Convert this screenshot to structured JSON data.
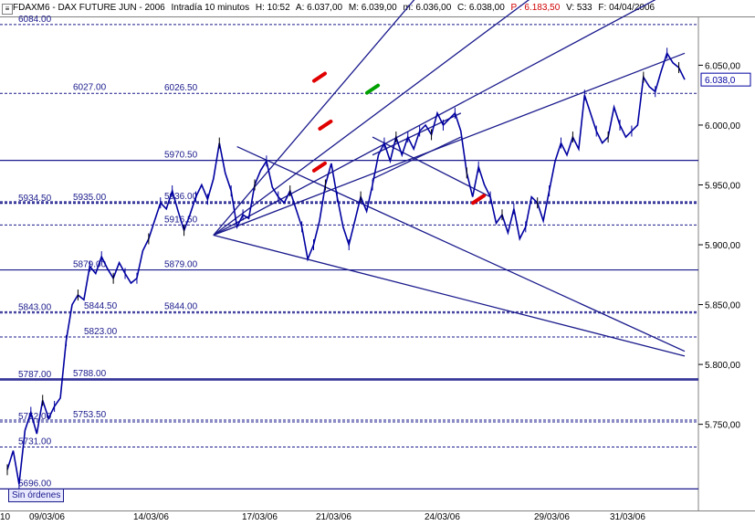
{
  "header": {
    "symbol": "FDAXM6 - DAX FUTURE  JUN - 2006",
    "interval": "Intradía 10 minutos",
    "h": "H: 10:52",
    "a": "A: 6.037,00",
    "m": "M: 6.039,00",
    "mn": "m: 6.036,00",
    "c": "C: 6.038,00",
    "p": "P : 6.183,50",
    "v": "V: 533",
    "f": "F: 04/04/2006"
  },
  "orders_badge": "Sin órdenes",
  "colors": {
    "plot_bg": "#ffffff",
    "line": "#1a1a8c",
    "price": "#0000a0",
    "red_marker": "#e00000",
    "green_marker": "#00a000",
    "black_candle": "#000000"
  },
  "chart_data": {
    "type": "line",
    "title": "",
    "xlabel": "",
    "ylabel": "",
    "ylim": [
      5678,
      6090
    ],
    "y_ticks": [
      "6.050,00",
      "6.000,00",
      "5.950,00",
      "5.900,00",
      "5.850,00",
      "5.800,00",
      "5.750,00"
    ],
    "current_price": "6.038,0",
    "x_labels": [
      "10",
      "09/03/06",
      "14/03/06",
      "17/03/06",
      "21/03/06",
      "24/03/06",
      "29/03/06",
      "31/03/06"
    ],
    "levels": [
      {
        "label": "6084.00",
        "value": 6084,
        "style": "dashed"
      },
      {
        "label": "6026.50",
        "value": 6026.5,
        "style": "dashed"
      },
      {
        "label": "6027.00",
        "value": 6027,
        "style": "dashed"
      },
      {
        "label": "5970.50",
        "value": 5970.5,
        "style": "solid"
      },
      {
        "label": "5934.50",
        "value": 5934.5,
        "style": "dashed"
      },
      {
        "label": "5935.00",
        "value": 5935,
        "style": "dashed"
      },
      {
        "label": "5936.00",
        "value": 5936,
        "style": "dashed"
      },
      {
        "label": "5916.50",
        "value": 5916.5,
        "style": "dashed"
      },
      {
        "label": "5879.00",
        "value": 5879,
        "style": "solid"
      },
      {
        "label": "5879.00",
        "value": 5879,
        "style": "solid"
      },
      {
        "label": "5843.00",
        "value": 5843,
        "style": "dashed"
      },
      {
        "label": "5844.00",
        "value": 5844,
        "style": "dashed"
      },
      {
        "label": "5844.50",
        "value": 5844.5,
        "style": "dashed"
      },
      {
        "label": "5823.00",
        "value": 5823,
        "style": "dashed"
      },
      {
        "label": "5787.00",
        "value": 5787,
        "style": "solid"
      },
      {
        "label": "5788.00",
        "value": 5788,
        "style": "solid"
      },
      {
        "label": "5753.50",
        "value": 5753.5,
        "style": "dashed"
      },
      {
        "label": "5752.00",
        "value": 5752,
        "style": "dashed"
      },
      {
        "label": "5731.00",
        "value": 5731,
        "style": "dashed"
      },
      {
        "label": "5696.00",
        "value": 5696,
        "style": "solid"
      }
    ],
    "series": [
      {
        "values": [
          [
            0,
            5712
          ],
          [
            1,
            5728
          ],
          [
            2,
            5700
          ],
          [
            3,
            5745
          ],
          [
            4,
            5760
          ],
          [
            5,
            5742
          ],
          [
            6,
            5770
          ],
          [
            7,
            5755
          ],
          [
            8,
            5765
          ],
          [
            9,
            5772
          ],
          [
            10,
            5820
          ],
          [
            11,
            5850
          ],
          [
            12,
            5858
          ],
          [
            13,
            5854
          ],
          [
            14,
            5882
          ],
          [
            15,
            5876
          ],
          [
            16,
            5890
          ],
          [
            17,
            5880
          ],
          [
            18,
            5872
          ],
          [
            19,
            5885
          ],
          [
            20,
            5876
          ],
          [
            21,
            5868
          ],
          [
            22,
            5872
          ],
          [
            23,
            5895
          ],
          [
            24,
            5905
          ],
          [
            25,
            5920
          ],
          [
            26,
            5935
          ],
          [
            27,
            5930
          ],
          [
            28,
            5945
          ],
          [
            29,
            5928
          ],
          [
            30,
            5912
          ],
          [
            31,
            5925
          ],
          [
            32,
            5940
          ],
          [
            33,
            5950
          ],
          [
            34,
            5938
          ],
          [
            35,
            5955
          ],
          [
            36,
            5985
          ],
          [
            37,
            5960
          ],
          [
            38,
            5945
          ],
          [
            39,
            5915
          ],
          [
            40,
            5925
          ],
          [
            41,
            5922
          ],
          [
            42,
            5950
          ],
          [
            43,
            5962
          ],
          [
            44,
            5970
          ],
          [
            45,
            5948
          ],
          [
            46,
            5940
          ],
          [
            47,
            5935
          ],
          [
            48,
            5945
          ],
          [
            49,
            5930
          ],
          [
            50,
            5915
          ],
          [
            51,
            5888
          ],
          [
            52,
            5900
          ],
          [
            53,
            5920
          ],
          [
            54,
            5950
          ],
          [
            55,
            5968
          ],
          [
            56,
            5940
          ],
          [
            57,
            5915
          ],
          [
            58,
            5900
          ],
          [
            59,
            5920
          ],
          [
            60,
            5940
          ],
          [
            61,
            5928
          ],
          [
            62,
            5950
          ],
          [
            63,
            5975
          ],
          [
            64,
            5985
          ],
          [
            65,
            5970
          ],
          [
            66,
            5990
          ],
          [
            67,
            5975
          ],
          [
            68,
            5990
          ],
          [
            69,
            5980
          ],
          [
            70,
            5995
          ],
          [
            71,
            6000
          ],
          [
            72,
            5992
          ],
          [
            73,
            6010
          ],
          [
            74,
            6000
          ],
          [
            75,
            6005
          ],
          [
            76,
            6010
          ],
          [
            77,
            5995
          ],
          [
            78,
            5960
          ],
          [
            79,
            5940
          ],
          [
            80,
            5965
          ],
          [
            81,
            5950
          ],
          [
            82,
            5940
          ],
          [
            83,
            5918
          ],
          [
            84,
            5925
          ],
          [
            85,
            5910
          ],
          [
            86,
            5930
          ],
          [
            87,
            5905
          ],
          [
            88,
            5915
          ],
          [
            89,
            5940
          ],
          [
            90,
            5935
          ],
          [
            91,
            5920
          ],
          [
            92,
            5945
          ],
          [
            93,
            5970
          ],
          [
            94,
            5985
          ],
          [
            95,
            5975
          ],
          [
            96,
            5990
          ],
          [
            97,
            5980
          ],
          [
            98,
            6025
          ],
          [
            99,
            6010
          ],
          [
            100,
            5995
          ],
          [
            101,
            5985
          ],
          [
            102,
            5990
          ],
          [
            103,
            6015
          ],
          [
            104,
            6000
          ],
          [
            105,
            5990
          ],
          [
            106,
            5995
          ],
          [
            107,
            6000
          ],
          [
            108,
            6040
          ],
          [
            109,
            6032
          ],
          [
            110,
            6028
          ],
          [
            111,
            6045
          ],
          [
            112,
            6060
          ],
          [
            113,
            6052
          ],
          [
            114,
            6048
          ],
          [
            115,
            6038
          ]
        ]
      }
    ],
    "trendlines": [
      {
        "from": [
          35,
          5908
        ],
        "to": [
          115,
          6060
        ]
      },
      {
        "from": [
          35,
          5908
        ],
        "to": [
          115,
          5807
        ]
      },
      {
        "from": [
          39,
          5982
        ],
        "to": [
          115,
          5811
        ]
      },
      {
        "from": [
          35,
          5908
        ],
        "to": [
          70,
          6110
        ]
      },
      {
        "from": [
          35,
          5908
        ],
        "to": [
          90,
          6110
        ]
      },
      {
        "from": [
          35,
          5908
        ],
        "to": [
          112,
          6110
        ]
      },
      {
        "from": [
          62,
          5975
        ],
        "to": [
          77,
          6010
        ]
      },
      {
        "from": [
          62,
          5955
        ],
        "to": [
          77,
          5990
        ]
      },
      {
        "from": [
          62,
          5990
        ],
        "to": [
          82,
          5940
        ]
      }
    ],
    "markers": [
      {
        "x": 53,
        "y": 6040,
        "color": "red"
      },
      {
        "x": 54,
        "y": 6000,
        "color": "red"
      },
      {
        "x": 53,
        "y": 5965,
        "color": "red"
      },
      {
        "x": 62,
        "y": 6030,
        "color": "green"
      },
      {
        "x": 80,
        "y": 5938,
        "color": "red"
      }
    ]
  }
}
